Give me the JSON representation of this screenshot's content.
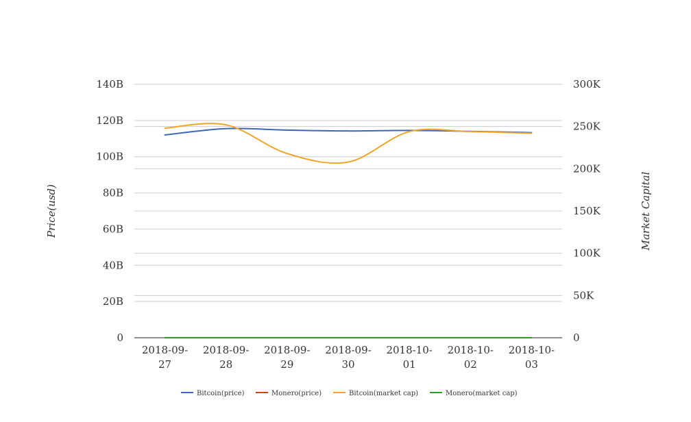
{
  "chart_data": {
    "type": "line",
    "categories": [
      "2018-09-27",
      "2018-09-28",
      "2018-09-29",
      "2018-09-30",
      "2018-10-01",
      "2018-10-02",
      "2018-10-03"
    ],
    "category_lines": [
      [
        "2018-09-",
        "27"
      ],
      [
        "2018-09-",
        "28"
      ],
      [
        "2018-09-",
        "29"
      ],
      [
        "2018-09-",
        "30"
      ],
      [
        "2018-10-",
        "01"
      ],
      [
        "2018-10-",
        "02"
      ],
      [
        "2018-10-",
        "03"
      ]
    ],
    "ylabel": "Price(usd)",
    "y2label": "Market Capital",
    "ylim": [
      0,
      140000000000
    ],
    "y2lim": [
      0,
      300000
    ],
    "y_ticks": [
      0,
      20000000000,
      40000000000,
      60000000000,
      80000000000,
      100000000000,
      120000000000,
      140000000000
    ],
    "y_tick_labels": [
      "0",
      "20B",
      "40B",
      "60B",
      "80B",
      "100B",
      "120B",
      "140B"
    ],
    "y2_ticks": [
      0,
      50000,
      100000,
      150000,
      200000,
      250000,
      300000
    ],
    "y2_tick_labels": [
      "0",
      "50K",
      "100K",
      "150K",
      "200K",
      "250K",
      "300K"
    ],
    "grid": true,
    "legend_position": "bottom",
    "series": [
      {
        "name": "Bitcoin(price)",
        "color": "#3c67b9",
        "axis": "left",
        "values": [
          112000000000,
          115500000000,
          114700000000,
          114200000000,
          114500000000,
          114000000000,
          113300000000
        ]
      },
      {
        "name": "Monero(price)",
        "color": "#d33d1c",
        "axis": "left",
        "values": [
          0,
          0,
          0,
          0,
          0,
          0,
          0
        ]
      },
      {
        "name": "Bitcoin(market cap)",
        "color": "#f0a524",
        "axis": "right",
        "values": [
          248000,
          252000,
          218000,
          208000,
          244000,
          244000,
          242000
        ]
      },
      {
        "name": "Monero(market cap)",
        "color": "#2a9c2a",
        "axis": "right",
        "values": [
          60,
          60,
          60,
          60,
          60,
          60,
          60
        ]
      }
    ]
  }
}
